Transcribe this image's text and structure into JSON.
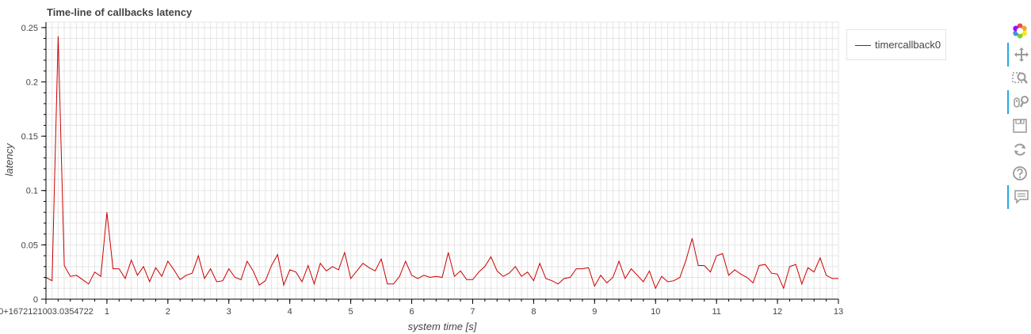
{
  "chart_data": {
    "type": "line",
    "title": "Time-line of callbacks latency",
    "xlabel": "system time [s]",
    "ylabel": "latency",
    "xlim": [
      0,
      13
    ],
    "ylim": [
      0,
      0.255
    ],
    "x_tick_labels": [
      {
        "value": 0,
        "label": "0+1672121003.0354722"
      },
      {
        "value": 1,
        "label": "1"
      },
      {
        "value": 2,
        "label": "2"
      },
      {
        "value": 3,
        "label": "3"
      },
      {
        "value": 4,
        "label": "4"
      },
      {
        "value": 5,
        "label": "5"
      },
      {
        "value": 6,
        "label": "6"
      },
      {
        "value": 7,
        "label": "7"
      },
      {
        "value": 8,
        "label": "8"
      },
      {
        "value": 9,
        "label": "9"
      },
      {
        "value": 10,
        "label": "10"
      },
      {
        "value": 11,
        "label": "11"
      },
      {
        "value": 12,
        "label": "12"
      },
      {
        "value": 13,
        "label": "13"
      }
    ],
    "y_tick_labels": [
      {
        "value": 0,
        "label": "0"
      },
      {
        "value": 0.05,
        "label": "0.05"
      },
      {
        "value": 0.1,
        "label": "0.1"
      },
      {
        "value": 0.15,
        "label": "0.15"
      },
      {
        "value": 0.2,
        "label": "0.2"
      },
      {
        "value": 0.25,
        "label": "0.25"
      }
    ],
    "grid": true,
    "legend_position": "right-top",
    "series": [
      {
        "name": "timercallback0",
        "color": "#cc0000",
        "x": [
          0.0,
          0.1,
          0.2,
          0.3,
          0.4,
          0.5,
          0.6,
          0.7,
          0.8,
          0.9,
          1.0,
          1.1,
          1.2,
          1.3,
          1.4,
          1.5,
          1.6,
          1.7,
          1.8,
          1.9,
          2.0,
          2.1,
          2.2,
          2.3,
          2.4,
          2.5,
          2.6,
          2.7,
          2.8,
          2.9,
          3.0,
          3.1,
          3.2,
          3.3,
          3.4,
          3.5,
          3.6,
          3.7,
          3.8,
          3.9,
          4.0,
          4.1,
          4.2,
          4.3,
          4.4,
          4.5,
          4.6,
          4.7,
          4.8,
          4.9,
          5.0,
          5.1,
          5.2,
          5.3,
          5.4,
          5.5,
          5.6,
          5.7,
          5.8,
          5.9,
          6.0,
          6.1,
          6.2,
          6.3,
          6.4,
          6.5,
          6.6,
          6.7,
          6.8,
          6.9,
          7.0,
          7.1,
          7.2,
          7.3,
          7.4,
          7.5,
          7.6,
          7.7,
          7.8,
          7.9,
          8.0,
          8.1,
          8.2,
          8.3,
          8.4,
          8.5,
          8.6,
          8.7,
          8.8,
          8.9,
          9.0,
          9.1,
          9.2,
          9.3,
          9.4,
          9.5,
          9.6,
          9.7,
          9.8,
          9.9,
          10.0,
          10.1,
          10.2,
          10.3,
          10.4,
          10.5,
          10.6,
          10.7,
          10.8,
          10.9,
          11.0,
          11.1,
          11.2,
          11.3,
          11.4,
          11.5,
          11.6,
          11.7,
          11.8,
          11.9,
          12.0,
          12.1,
          12.2,
          12.3,
          12.4,
          12.5,
          12.6,
          12.7,
          12.8,
          12.9,
          13.0
        ],
        "y": [
          0.02,
          0.017,
          0.242,
          0.031,
          0.021,
          0.022,
          0.018,
          0.014,
          0.025,
          0.021,
          0.08,
          0.028,
          0.028,
          0.019,
          0.036,
          0.022,
          0.03,
          0.016,
          0.029,
          0.021,
          0.035,
          0.027,
          0.018,
          0.022,
          0.024,
          0.04,
          0.019,
          0.028,
          0.016,
          0.017,
          0.028,
          0.02,
          0.018,
          0.035,
          0.026,
          0.013,
          0.017,
          0.031,
          0.041,
          0.013,
          0.027,
          0.025,
          0.016,
          0.031,
          0.014,
          0.033,
          0.026,
          0.03,
          0.027,
          0.043,
          0.019,
          0.026,
          0.033,
          0.029,
          0.026,
          0.037,
          0.014,
          0.014,
          0.021,
          0.035,
          0.022,
          0.019,
          0.022,
          0.02,
          0.021,
          0.02,
          0.043,
          0.021,
          0.026,
          0.018,
          0.018,
          0.025,
          0.03,
          0.039,
          0.026,
          0.021,
          0.024,
          0.03,
          0.021,
          0.025,
          0.017,
          0.033,
          0.019,
          0.017,
          0.014,
          0.019,
          0.02,
          0.028,
          0.028,
          0.029,
          0.012,
          0.022,
          0.015,
          0.02,
          0.035,
          0.019,
          0.028,
          0.022,
          0.016,
          0.026,
          0.01,
          0.021,
          0.016,
          0.017,
          0.02,
          0.036,
          0.056,
          0.031,
          0.031,
          0.025,
          0.04,
          0.042,
          0.022,
          0.027,
          0.023,
          0.02,
          0.015,
          0.031,
          0.032,
          0.024,
          0.023,
          0.01,
          0.03,
          0.032,
          0.014,
          0.029,
          0.025,
          0.038,
          0.022,
          0.019,
          0.019
        ]
      }
    ]
  },
  "legend": {
    "items": [
      {
        "label": "timercallback0",
        "color": "#cc0000"
      }
    ]
  },
  "toolbar": {
    "tools": [
      {
        "icon": "bokeh-logo-icon",
        "active": false
      },
      {
        "icon": "pan-icon",
        "active": true
      },
      {
        "icon": "box-zoom-icon",
        "active": false
      },
      {
        "icon": "wheel-zoom-icon",
        "active": true
      },
      {
        "icon": "save-icon",
        "active": false
      },
      {
        "icon": "reset-icon",
        "active": false
      },
      {
        "icon": "help-icon",
        "active": false
      },
      {
        "icon": "hover-icon",
        "active": true
      }
    ]
  }
}
